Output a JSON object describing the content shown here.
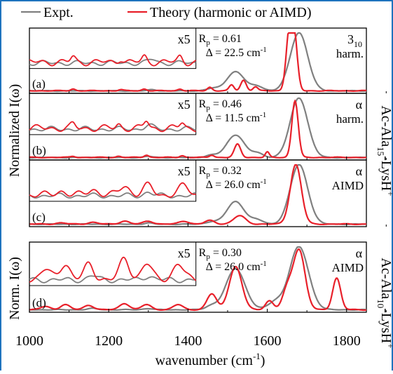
{
  "colors": {
    "expt": "#808080",
    "theory": "#e8202a",
    "frame_accent": "#1e73be"
  },
  "legend": {
    "expt_label": "Expt.",
    "theory_label": "Theory (harmonic or AIMD)"
  },
  "chart_data": {
    "type": "line",
    "xlabel": "wavenumber (cm",
    "xlabel_sup": "-1",
    "xlabel_close": ")",
    "xlim": [
      1000,
      1850
    ],
    "xticks": [
      1000,
      1200,
      1400,
      1600,
      1800
    ],
    "ylabel_top": "Normalized I(ω)",
    "ylabel_bottom": "Norm. I(ω)",
    "molecule_top": {
      "pre": "Ac-Ala",
      "sub": "15",
      "post": "-LysH",
      "sup": "+"
    },
    "molecule_bottom": {
      "pre": "Ac-Ala",
      "sub": "10",
      "post": "-LysH",
      "sup": "+"
    },
    "panels": [
      {
        "label": "(a)",
        "zoom": "x5",
        "rp": "0.61",
        "delta": "22.5",
        "struct_main": "3",
        "struct_sub": "10",
        "method": "harm.",
        "expt_peaks": [
          [
            1520,
            0.33,
            22
          ],
          [
            1575,
            0.08,
            15
          ],
          [
            1680,
            1.0,
            22
          ],
          [
            1460,
            0.04,
            15
          ],
          [
            1310,
            0.02,
            10
          ]
        ],
        "theory_peaks": [
          [
            1455,
            0.06,
            6
          ],
          [
            1510,
            0.1,
            6
          ],
          [
            1540,
            0.18,
            7
          ],
          [
            1570,
            0.07,
            6
          ],
          [
            1655,
            0.92,
            8
          ],
          [
            1668,
            0.9,
            8
          ],
          [
            1380,
            0.03,
            6
          ],
          [
            1290,
            0.03,
            6
          ],
          [
            1230,
            0.02,
            6
          ],
          [
            1110,
            0.03,
            6
          ]
        ]
      },
      {
        "label": "(b)",
        "zoom": "x5",
        "rp": "0.46",
        "delta": "11.5",
        "struct_main": "α",
        "struct_sub": "",
        "method": "harm.",
        "expt_peaks": [
          [
            1520,
            0.38,
            22
          ],
          [
            1575,
            0.07,
            15
          ],
          [
            1680,
            1.0,
            22
          ],
          [
            1460,
            0.04,
            15
          ],
          [
            1300,
            0.02,
            10
          ]
        ],
        "theory_peaks": [
          [
            1460,
            0.04,
            6
          ],
          [
            1525,
            0.22,
            8
          ],
          [
            1600,
            0.09,
            5
          ],
          [
            1670,
            0.95,
            8
          ],
          [
            1385,
            0.03,
            6
          ],
          [
            1295,
            0.04,
            6
          ],
          [
            1225,
            0.02,
            6
          ],
          [
            1110,
            0.02,
            6
          ]
        ]
      },
      {
        "label": "(c)",
        "zoom": "x5",
        "rp": "0.32",
        "delta": "26.0",
        "struct_main": "α",
        "struct_sub": "",
        "method": "AIMD",
        "expt_peaks": [
          [
            1520,
            0.38,
            22
          ],
          [
            1575,
            0.07,
            15
          ],
          [
            1680,
            1.0,
            22
          ],
          [
            1460,
            0.04,
            15
          ],
          [
            1300,
            0.02,
            10
          ]
        ],
        "theory_peaks": [
          [
            1455,
            0.06,
            12
          ],
          [
            1530,
            0.14,
            15
          ],
          [
            1672,
            1.0,
            14
          ],
          [
            1390,
            0.05,
            12
          ],
          [
            1300,
            0.05,
            12
          ],
          [
            1240,
            0.05,
            12
          ],
          [
            1160,
            0.03,
            12
          ],
          [
            1080,
            0.02,
            12
          ]
        ]
      },
      {
        "label": "(d)",
        "zoom": "x5",
        "rp": "0.30",
        "delta": "26.0",
        "struct_main": "α",
        "struct_sub": "",
        "method": "AIMD",
        "expt_peaks": [
          [
            1520,
            0.65,
            24
          ],
          [
            1620,
            0.12,
            18
          ],
          [
            1680,
            1.0,
            24
          ],
          [
            1460,
            0.06,
            15
          ],
          [
            1300,
            0.02,
            12
          ],
          [
            1160,
            0.02,
            12
          ]
        ],
        "theory_peaks": [
          [
            1460,
            0.25,
            12
          ],
          [
            1520,
            0.68,
            16
          ],
          [
            1605,
            0.14,
            10
          ],
          [
            1650,
            0.3,
            12
          ],
          [
            1680,
            0.95,
            15
          ],
          [
            1775,
            0.5,
            10
          ],
          [
            1375,
            0.08,
            12
          ],
          [
            1295,
            0.08,
            12
          ],
          [
            1240,
            0.1,
            12
          ],
          [
            1150,
            0.07,
            12
          ],
          [
            1090,
            0.08,
            12
          ],
          [
            1040,
            0.05,
            12
          ]
        ]
      }
    ]
  }
}
